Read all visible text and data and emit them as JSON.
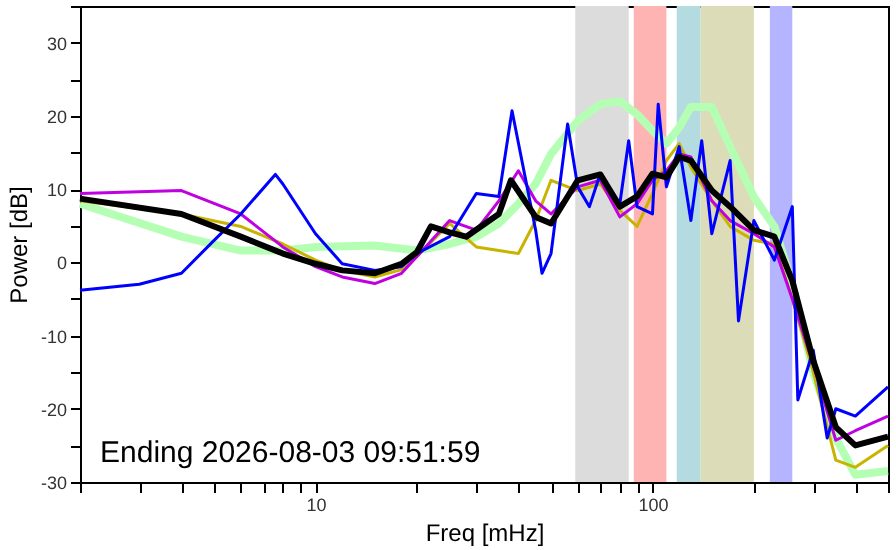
{
  "chart_data": {
    "type": "line",
    "xlabel": "Freq [mHz]",
    "ylabel": "Power [dB]",
    "log": "x",
    "xlim": [
      2,
      500
    ],
    "ylim": [
      -30,
      35
    ],
    "xticks": [
      {
        "value": 2,
        "label": null
      },
      {
        "value": 3,
        "label": null
      },
      {
        "value": 4,
        "label": null
      },
      {
        "value": 5,
        "label": null
      },
      {
        "value": 6,
        "label": null
      },
      {
        "value": 7,
        "label": null
      },
      {
        "value": 8,
        "label": null
      },
      {
        "value": 9,
        "label": null
      },
      10,
      {
        "value": 20,
        "label": null
      },
      {
        "value": 30,
        "label": null
      },
      {
        "value": 40,
        "label": null
      },
      {
        "value": 50,
        "label": null
      },
      {
        "value": 60,
        "label": null
      },
      {
        "value": 70,
        "label": null
      },
      {
        "value": 80,
        "label": null
      },
      {
        "value": 90,
        "label": null
      },
      100,
      {
        "value": 200,
        "label": null
      },
      {
        "value": 300,
        "label": null
      },
      {
        "value": 400,
        "label": null
      },
      {
        "value": 500,
        "label": null
      }
    ],
    "yticks": [
      -30,
      {
        "value": -25,
        "label": null
      },
      -20,
      {
        "value": -15,
        "label": null
      },
      -10,
      {
        "value": -5,
        "label": null
      },
      0,
      {
        "value": 5,
        "label": null
      },
      10,
      {
        "value": 15,
        "label": null
      },
      20,
      {
        "value": 25,
        "label": null
      },
      30,
      {
        "value": 35,
        "label": null
      }
    ],
    "grid": false,
    "marker": "none",
    "line_style": "solid",
    "bands": [
      {
        "axis": "x",
        "from": 59,
        "to": 85,
        "color": "#dcdcdc"
      },
      {
        "axis": "x",
        "from": 88,
        "to": 110,
        "color": "#ffb4b4"
      },
      {
        "axis": "x",
        "from": 118,
        "to": 139,
        "color": "#b4dce0"
      },
      {
        "axis": "x",
        "from": 139,
        "to": 200,
        "color": "#dcdcb8"
      },
      {
        "axis": "x",
        "from": 223,
        "to": 260,
        "color": "#b4b4ff"
      }
    ],
    "annotations": [
      "Ending 2026-08-03 09:51:59"
    ],
    "series": [
      {
        "color": "#b4ffb4",
        "x": [
          2,
          4,
          6,
          8,
          10,
          15,
          20,
          25,
          30,
          35,
          40,
          45,
          50,
          60,
          70,
          80,
          90,
          100,
          110,
          120,
          130,
          150,
          170,
          200,
          230,
          260,
          300,
          350,
          400,
          500
        ],
        "values": [
          8,
          3.5,
          1.6,
          1.6,
          2.1,
          2.3,
          1.6,
          2.5,
          3.5,
          5.3,
          8,
          10.7,
          14.8,
          19.3,
          21.6,
          22,
          20.2,
          18,
          16.2,
          18.4,
          21.2,
          21.2,
          15.8,
          8.9,
          4.9,
          -3,
          -15,
          -24,
          -29,
          -28.5
        ]
      },
      {
        "color": "#c8b400",
        "x": [
          2,
          4,
          6,
          8,
          10,
          12,
          15,
          18,
          20,
          25,
          30,
          35,
          40,
          45,
          50,
          60,
          70,
          80,
          90,
          100,
          110,
          120,
          130,
          150,
          170,
          200,
          230,
          260,
          300,
          350,
          400,
          500
        ],
        "values": [
          8.4,
          6.6,
          4.9,
          2.5,
          0.3,
          -1.1,
          -2,
          -1,
          0.8,
          5.3,
          2.1,
          1.6,
          1.2,
          5.7,
          11.2,
          9.8,
          10.7,
          7.1,
          4.9,
          9.4,
          13.9,
          16.2,
          13,
          8.4,
          4.9,
          3,
          2.5,
          -5,
          -15,
          -27,
          -28,
          -25
        ]
      },
      {
        "color": "#c000e0",
        "x": [
          2,
          4,
          6,
          8,
          10,
          12,
          15,
          18,
          20,
          25,
          30,
          35,
          40,
          45,
          50,
          60,
          70,
          80,
          90,
          100,
          110,
          120,
          130,
          150,
          170,
          200,
          230,
          260,
          300,
          350,
          400,
          500
        ],
        "values": [
          9.4,
          9.8,
          6.6,
          2.1,
          -0.6,
          -2,
          -2.9,
          -1.5,
          0.8,
          5.7,
          4.4,
          8.4,
          12.5,
          8.4,
          6.6,
          10.3,
          11.2,
          6.2,
          8,
          11.2,
          12.5,
          14.8,
          14.4,
          8.4,
          5.7,
          3.9,
          2.1,
          -5,
          -14,
          -24.3,
          -23,
          -21
        ]
      },
      {
        "color": "#0000ff",
        "x": [
          2,
          3,
          4,
          5,
          6,
          7.6,
          8,
          10,
          12,
          15,
          18,
          20,
          25,
          30,
          35,
          38.3,
          45,
          47,
          50,
          56,
          60,
          65,
          70,
          80,
          85,
          90,
          100,
          104,
          110,
          120,
          130,
          140,
          150,
          170,
          180,
          200,
          230,
          260,
          270,
          300,
          330,
          350,
          400,
          500
        ],
        "values": [
          -3.8,
          -3,
          -1.5,
          3,
          6.6,
          12,
          10.7,
          3.9,
          -0.2,
          -1.1,
          -0.6,
          1.2,
          3.5,
          9.4,
          9,
          20.7,
          4.4,
          -1.5,
          1.2,
          18.9,
          10.3,
          7.6,
          12.1,
          8,
          16.6,
          7.6,
          6.6,
          21.6,
          10.3,
          15.8,
          5.7,
          16.6,
          3.9,
          13.9,
          -8,
          5.7,
          0.3,
          7.6,
          -18.8,
          -12,
          -24,
          -20,
          -21,
          -17
        ]
      },
      {
        "color": "#000000",
        "x": [
          2,
          4,
          6,
          8,
          10,
          12,
          15,
          18,
          20,
          22,
          25,
          28,
          35,
          38,
          45,
          50,
          60,
          70,
          80,
          90,
          100,
          110,
          120,
          130,
          150,
          170,
          200,
          230,
          260,
          300,
          350,
          400,
          500
        ],
        "values": [
          8.7,
          6.6,
          3.5,
          1.2,
          -0.2,
          -1.1,
          -1.5,
          -0.2,
          1.4,
          4.9,
          4.1,
          3.5,
          6.6,
          11.2,
          6.2,
          5.3,
          11.2,
          12,
          7.6,
          9,
          12.1,
          11.6,
          14.4,
          13.9,
          9.8,
          7.6,
          4.4,
          3.5,
          -2.5,
          -13.4,
          -22.5,
          -25,
          -23.8
        ]
      }
    ]
  }
}
